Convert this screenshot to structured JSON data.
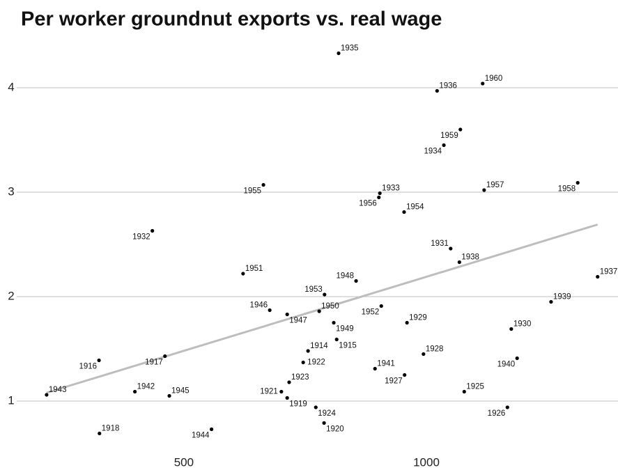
{
  "chart_data": {
    "type": "scatter",
    "title": "Per worker groundnut exports vs. real wage",
    "point_labels": [
      "1935",
      "1960",
      "1936",
      "1959",
      "1934",
      "1955",
      "1933",
      "1956",
      "1957",
      "1958",
      "1954",
      "1932",
      "1931",
      "1938",
      "1937",
      "1951",
      "1948",
      "1953",
      "1939",
      "1952",
      "1946",
      "1947",
      "1950",
      "1949",
      "1929",
      "1930",
      "1915",
      "1914",
      "1928",
      "1917",
      "1940",
      "1916",
      "1922",
      "1941",
      "1927",
      "1923",
      "1942",
      "1921",
      "1925",
      "1943",
      "1945",
      "1919",
      "1924",
      "1926",
      "1918",
      "1944",
      "1920"
    ],
    "x": [
      819,
      1116,
      1022,
      1070,
      1036,
      664,
      904,
      902,
      1119,
      1312,
      954,
      435,
      1050,
      1068,
      1353,
      622,
      855,
      790,
      1257,
      907,
      677,
      713,
      779,
      809,
      960,
      1175,
      815,
      756,
      994,
      461,
      1187,
      325,
      746,
      894,
      955,
      717,
      399,
      701,
      1078,
      217,
      470,
      713,
      772,
      1167,
      326,
      557,
      789
    ],
    "values": [
      4.33,
      4.04,
      3.97,
      3.6,
      3.45,
      3.07,
      2.99,
      2.95,
      3.02,
      3.09,
      2.81,
      2.63,
      2.46,
      2.33,
      2.19,
      2.22,
      2.15,
      2.02,
      1.95,
      1.91,
      1.87,
      1.83,
      1.86,
      1.75,
      1.75,
      1.69,
      1.59,
      1.48,
      1.45,
      1.43,
      1.41,
      1.39,
      1.37,
      1.31,
      1.25,
      1.18,
      1.09,
      1.09,
      1.09,
      1.06,
      1.05,
      1.03,
      0.94,
      0.94,
      0.69,
      0.73,
      0.79
    ],
    "color": "#000000",
    "trend_line": {
      "x": [
        217,
        1353
      ],
      "values": [
        1.08,
        2.69
      ],
      "color": "#bdbdbd"
    },
    "xlim": [
      164,
      1395
    ],
    "ylim": [
      0.44,
      4.44
    ],
    "xticks": [
      500,
      1000
    ],
    "yticks": [
      1,
      2,
      3,
      4
    ],
    "grid": true
  }
}
